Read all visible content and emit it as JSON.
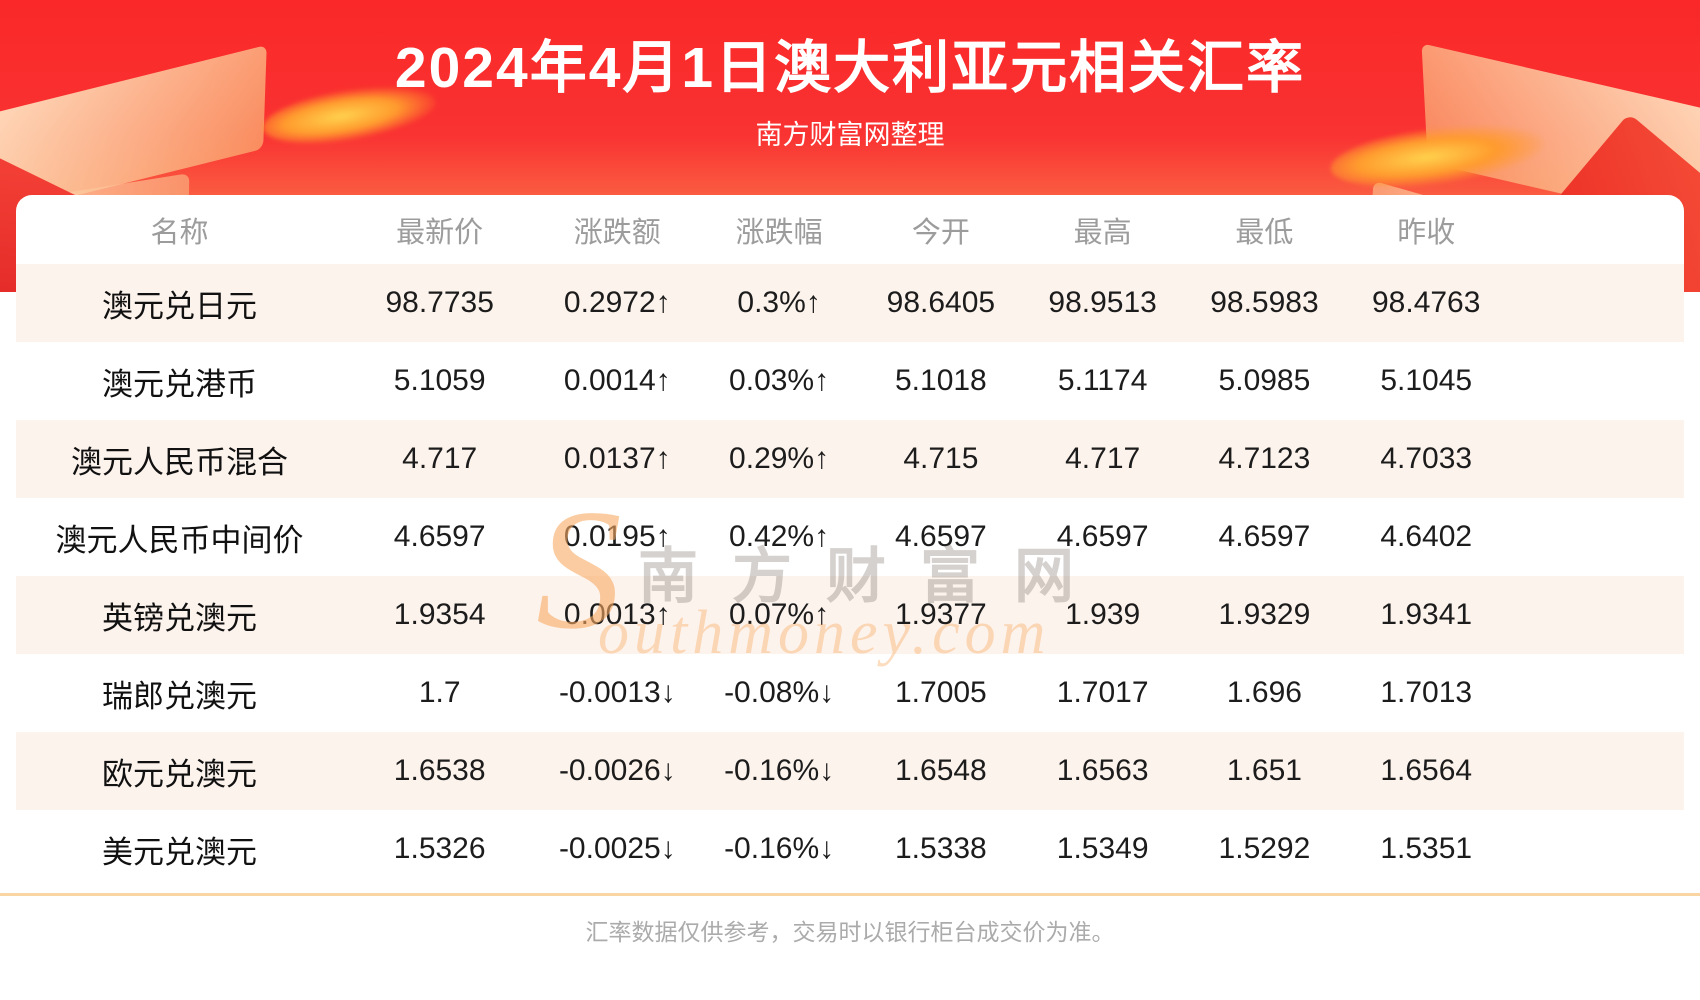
{
  "banner": {
    "title": "2024年4月1日澳大利亚元相关汇率",
    "subtitle": "南方财富网整理"
  },
  "watermark": {
    "initial": "S",
    "cn": "南方财富网",
    "en": "outhmoney.com"
  },
  "footer": {
    "note": "汇率数据仅供参考，交易时以银行柜台成交价为准。"
  },
  "colors": {
    "up": "#f21212",
    "down": "#0a8f0a",
    "row_alt": "#fdf3ed",
    "divider": "#f8d5a2",
    "banner_red": "#fa2828",
    "header_gray": "#9c9c9c"
  },
  "chart_data": {
    "type": "table",
    "title": "2024年4月1日澳大利亚元相关汇率",
    "columns": [
      "名称",
      "最新价",
      "涨跌额",
      "涨跌幅",
      "今开",
      "最高",
      "最低",
      "昨收"
    ],
    "rows": [
      {
        "name": "澳元兑日元",
        "latest": "98.7735",
        "change": "0.2972↑",
        "change_pct": "0.3%↑",
        "open": "98.6405",
        "high": "98.9513",
        "low": "98.5983",
        "prev_close": "98.4763",
        "direction": "up"
      },
      {
        "name": "澳元兑港币",
        "latest": "5.1059",
        "change": "0.0014↑",
        "change_pct": "0.03%↑",
        "open": "5.1018",
        "high": "5.1174",
        "low": "5.0985",
        "prev_close": "5.1045",
        "direction": "up"
      },
      {
        "name": "澳元人民币混合",
        "latest": "4.717",
        "change": "0.0137↑",
        "change_pct": "0.29%↑",
        "open": "4.715",
        "high": "4.717",
        "low": "4.7123",
        "prev_close": "4.7033",
        "direction": "up"
      },
      {
        "name": "澳元人民币中间价",
        "latest": "4.6597",
        "change": "0.0195↑",
        "change_pct": "0.42%↑",
        "open": "4.6597",
        "high": "4.6597",
        "low": "4.6597",
        "prev_close": "4.6402",
        "direction": "up"
      },
      {
        "name": "英镑兑澳元",
        "latest": "1.9354",
        "change": "0.0013↑",
        "change_pct": "0.07%↑",
        "open": "1.9377",
        "high": "1.939",
        "low": "1.9329",
        "prev_close": "1.9341",
        "direction": "up"
      },
      {
        "name": "瑞郎兑澳元",
        "latest": "1.7",
        "change": "-0.0013↓",
        "change_pct": "-0.08%↓",
        "open": "1.7005",
        "high": "1.7017",
        "low": "1.696",
        "prev_close": "1.7013",
        "direction": "down"
      },
      {
        "name": "欧元兑澳元",
        "latest": "1.6538",
        "change": "-0.0026↓",
        "change_pct": "-0.16%↓",
        "open": "1.6548",
        "high": "1.6563",
        "low": "1.651",
        "prev_close": "1.6564",
        "direction": "down"
      },
      {
        "name": "美元兑澳元",
        "latest": "1.5326",
        "change": "-0.0025↓",
        "change_pct": "-0.16%↓",
        "open": "1.5338",
        "high": "1.5349",
        "low": "1.5292",
        "prev_close": "1.5351",
        "direction": "down"
      }
    ]
  }
}
